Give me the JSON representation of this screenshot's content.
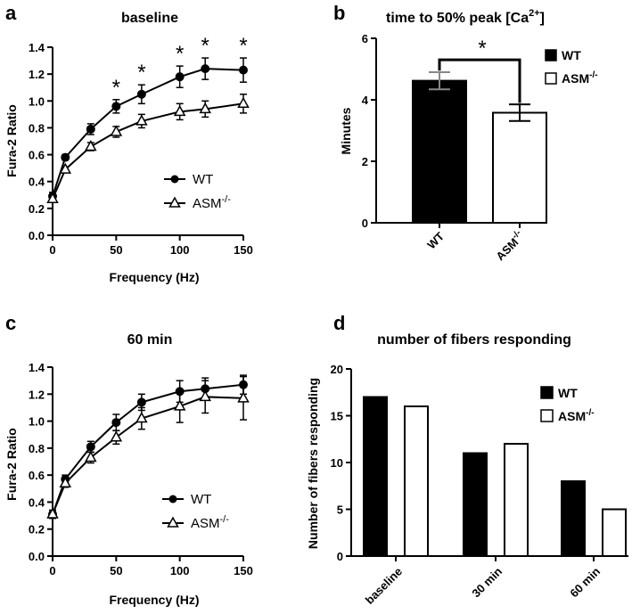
{
  "chart_data": [
    {
      "panel": "a",
      "type": "line",
      "title": "baseline",
      "xlabel": "Frequency (Hz)",
      "ylabel": "Fura-2 Ratio",
      "xlim": [
        0,
        150
      ],
      "ylim": [
        0.0,
        1.4
      ],
      "xticks": [
        0,
        50,
        100,
        150
      ],
      "yticks": [
        0.0,
        0.2,
        0.4,
        0.6,
        0.8,
        1.0,
        1.2,
        1.4
      ],
      "x": [
        0,
        10,
        30,
        50,
        70,
        100,
        120,
        150
      ],
      "series": [
        {
          "name": "WT",
          "marker": "circle",
          "values": [
            0.29,
            0.58,
            0.79,
            0.96,
            1.05,
            1.18,
            1.24,
            1.23
          ],
          "errors": [
            0.03,
            0.02,
            0.04,
            0.05,
            0.07,
            0.08,
            0.08,
            0.09
          ]
        },
        {
          "name": "ASM",
          "sup": "-/-",
          "marker": "triangle",
          "values": [
            0.27,
            0.49,
            0.66,
            0.77,
            0.85,
            0.92,
            0.94,
            0.98
          ],
          "errors": [
            0.02,
            0.02,
            0.03,
            0.04,
            0.05,
            0.06,
            0.06,
            0.07
          ]
        }
      ],
      "significance": {
        "label": "*",
        "x": [
          50,
          70,
          100,
          120,
          150
        ]
      },
      "legend_position": "lower-right"
    },
    {
      "panel": "b",
      "type": "bar",
      "title": "time to 50% peak [Ca",
      "title_sup": "2+",
      "title_end": "]",
      "ylabel": "Minutes",
      "ylim": [
        0,
        6
      ],
      "yticks": [
        0,
        2,
        4,
        6
      ],
      "categories": [
        "WT",
        "ASM"
      ],
      "category_sups": [
        "",
        "-/-"
      ],
      "series": [
        {
          "name": "WT",
          "fill": "#000000",
          "value": 4.62,
          "error": 0.28
        },
        {
          "name": "ASM",
          "sup": "-/-",
          "fill": "#ffffff",
          "value": 3.58,
          "error": 0.27
        }
      ],
      "significance": "*",
      "legend_position": "top-right"
    },
    {
      "panel": "c",
      "type": "line",
      "title": "60 min",
      "xlabel": "Frequency (Hz)",
      "ylabel": "Fura-2 Ratio",
      "xlim": [
        0,
        150
      ],
      "ylim": [
        0.0,
        1.4
      ],
      "xticks": [
        0,
        50,
        100,
        150
      ],
      "yticks": [
        0.0,
        0.2,
        0.4,
        0.6,
        0.8,
        1.0,
        1.2,
        1.4
      ],
      "x": [
        0,
        10,
        30,
        50,
        70,
        100,
        120,
        150
      ],
      "series": [
        {
          "name": "WT",
          "marker": "circle",
          "values": [
            0.31,
            0.57,
            0.81,
            0.99,
            1.14,
            1.22,
            1.24,
            1.27
          ],
          "errors": [
            0.03,
            0.03,
            0.04,
            0.06,
            0.06,
            0.08,
            0.08,
            0.07
          ]
        },
        {
          "name": "ASM",
          "sup": "-/-",
          "marker": "triangle",
          "values": [
            0.31,
            0.54,
            0.73,
            0.88,
            1.02,
            1.11,
            1.18,
            1.17
          ],
          "errors": [
            0.03,
            0.03,
            0.04,
            0.05,
            0.08,
            0.12,
            0.12,
            0.16
          ]
        }
      ],
      "legend_position": "lower-right"
    },
    {
      "panel": "d",
      "type": "bar",
      "title": "number of fibers responding",
      "ylabel": "Number of fibers responding",
      "ylim": [
        0,
        20
      ],
      "yticks": [
        0,
        5,
        10,
        15,
        20
      ],
      "categories": [
        "baseline",
        "30 min",
        "60 min"
      ],
      "series": [
        {
          "name": "WT",
          "fill": "#000000",
          "values": [
            17,
            11,
            8
          ]
        },
        {
          "name": "ASM",
          "sup": "-/-",
          "fill": "#ffffff",
          "values": [
            16,
            12,
            5
          ]
        }
      ],
      "legend_position": "top-right"
    }
  ]
}
